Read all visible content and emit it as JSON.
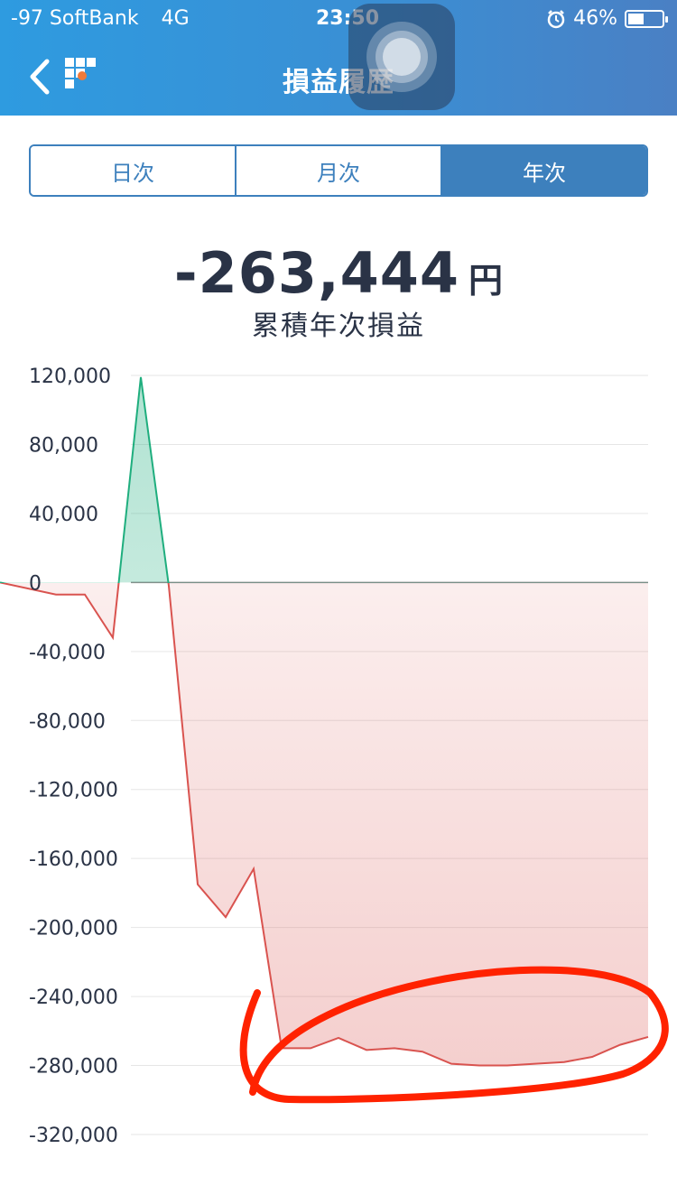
{
  "status_bar": {
    "carrier": "-97 SoftBank",
    "network": "4G",
    "time": "23:50",
    "battery": "46%",
    "battery_level": 0.46
  },
  "nav": {
    "title": "損益履歴",
    "back_icon": "chevron-left-icon",
    "logo_icon": "app-logo-icon"
  },
  "tabs": [
    {
      "label": "日次",
      "active": false
    },
    {
      "label": "月次",
      "active": false
    },
    {
      "label": "年次",
      "active": true
    }
  ],
  "summary": {
    "value": "-263,444",
    "unit": "円",
    "caption": "累積年次損益"
  },
  "colors": {
    "accent": "#3d80bd",
    "positive": "#1fae7e",
    "negative": "#d9534f",
    "annotation": "#ff2200"
  },
  "chart_data": {
    "type": "area",
    "ylim": [
      -320000,
      120000
    ],
    "yticks": [
      "120,000",
      "80,000",
      "40,000",
      "0",
      "-40,000",
      "-80,000",
      "-120,000",
      "-160,000",
      "-200,000",
      "-240,000",
      "-280,000",
      "-320,000"
    ],
    "ytick_values": [
      120000,
      80000,
      40000,
      0,
      -40000,
      -80000,
      -120000,
      -160000,
      -200000,
      -240000,
      -280000,
      -320000
    ],
    "grid": true,
    "series": [
      {
        "values": [
          0,
          -7000,
          -7000,
          -32000,
          119000,
          -2000,
          -175000,
          -194000,
          -166000,
          -270000,
          -270000,
          -264000,
          -271000,
          -270000,
          -272000,
          -279000,
          -280000,
          -280000,
          -279000,
          -278000,
          -275000,
          -268000,
          -263444
        ]
      }
    ]
  }
}
